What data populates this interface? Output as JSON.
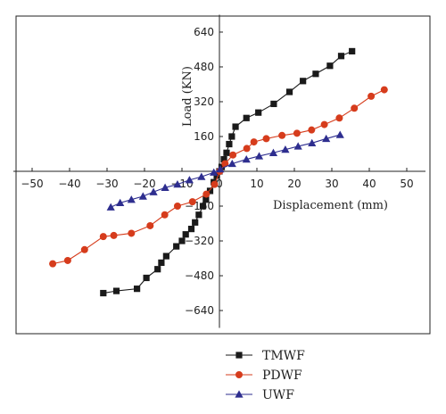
{
  "chart_data": {
    "type": "line",
    "title": "",
    "xlabel": "Displacement (mm)",
    "ylabel": "Load (KN)",
    "xlim": [
      -55,
      55
    ],
    "ylim": [
      -720,
      720
    ],
    "x_ticks": [
      -50,
      -40,
      -30,
      -20,
      -10,
      0,
      10,
      20,
      30,
      40,
      50
    ],
    "y_ticks": [
      -640,
      -480,
      -320,
      -160,
      0,
      160,
      320,
      480,
      640
    ],
    "x_tick_labels": [
      "−50",
      "−40",
      "−30",
      "−20",
      "−10",
      "0",
      "10",
      "20",
      "30",
      "40",
      "50"
    ],
    "y_tick_labels": [
      "−640",
      "−480",
      "−320",
      "−160",
      "0",
      "160",
      "320",
      "480",
      "640"
    ],
    "grid": false,
    "legend_position": "bottom",
    "series": [
      {
        "name": "TMWF",
        "color": "#1a1a1a",
        "marker": "square",
        "x": [
          -31,
          -27.5,
          -22,
          -19.5,
          -16.5,
          -15.5,
          -14.2,
          -11.5,
          -10,
          -9,
          -7.5,
          -6.5,
          -5.5,
          -4.4,
          -3.6,
          -2.5,
          -1.5,
          -0.7,
          0,
          0.6,
          1.2,
          1.9,
          2.6,
          3.3,
          4.3,
          7.2,
          10.4,
          14.5,
          18.7,
          22.3,
          25.7,
          29.5,
          32.5,
          35.4
        ],
        "y": [
          -560,
          -550,
          -540,
          -490,
          -450,
          -420,
          -390,
          -345,
          -320,
          -290,
          -265,
          -235,
          -200,
          -160,
          -130,
          -90,
          -50,
          -20,
          0,
          20,
          55,
          85,
          125,
          160,
          205,
          245,
          270,
          310,
          365,
          415,
          448,
          485,
          530,
          552
        ]
      },
      {
        "name": "PDWF",
        "color": "#d63c1c",
        "marker": "circle",
        "x": [
          -44.5,
          -40.5,
          -36,
          -31,
          -28.2,
          -23.5,
          -18.5,
          -14.6,
          -11.2,
          -7.2,
          -3.5,
          -1.3,
          0.1,
          1.5,
          3.6,
          7.3,
          9.2,
          12.5,
          16.7,
          20.7,
          24.6,
          28,
          32,
          36,
          40.5,
          44
        ],
        "y": [
          -425,
          -410,
          -360,
          -300,
          -295,
          -285,
          -250,
          -200,
          -160,
          -140,
          -105,
          -60,
          0,
          35,
          75,
          105,
          135,
          150,
          165,
          175,
          190,
          215,
          245,
          290,
          345,
          375
        ]
      },
      {
        "name": "UWF",
        "color": "#2e2e8f",
        "marker": "triangle",
        "x": [
          -29,
          -26.5,
          -23.5,
          -20.4,
          -17.6,
          -14.5,
          -11.2,
          -8,
          -4.8,
          -1.5,
          0.2,
          3.4,
          7.2,
          10.6,
          14.4,
          17.6,
          21,
          24.7,
          28.5,
          32.2
        ],
        "y": [
          -165,
          -145,
          -130,
          -115,
          -95,
          -75,
          -60,
          -40,
          -25,
          -5,
          10,
          35,
          55,
          70,
          85,
          100,
          115,
          130,
          150,
          168
        ]
      }
    ]
  }
}
